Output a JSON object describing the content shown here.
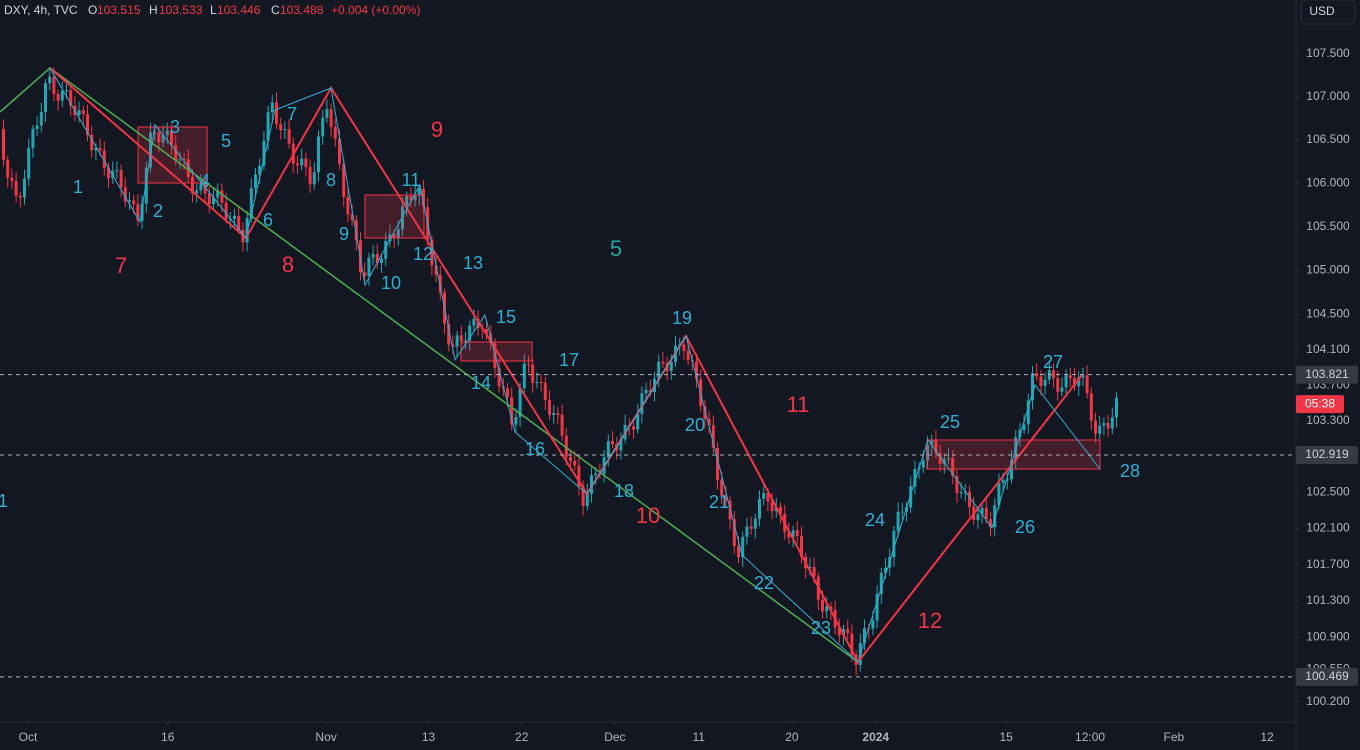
{
  "header": {
    "symbol": "DXY, 4h, TVC",
    "ohlc": [
      {
        "key": "O",
        "value": "103.515"
      },
      {
        "key": "H",
        "value": "103.533"
      },
      {
        "key": "L",
        "value": "103.446"
      },
      {
        "key": "C",
        "value": "103.488"
      }
    ],
    "change": "+0.004 (+0.00%)"
  },
  "currency_button": "USD",
  "chart_data": {
    "type": "candlestick",
    "log_scale": true,
    "ylim": [
      100.0,
      108.13
    ],
    "yticks": [
      {
        "value": 107.5,
        "label": "107.500"
      },
      {
        "value": 107.0,
        "label": "107.000"
      },
      {
        "value": 106.5,
        "label": "106.500"
      },
      {
        "value": 106.0,
        "label": "106.000"
      },
      {
        "value": 105.5,
        "label": "105.500"
      },
      {
        "value": 105.0,
        "label": "105.000"
      },
      {
        "value": 104.5,
        "label": "104.500"
      },
      {
        "value": 104.1,
        "label": "104.100"
      },
      {
        "value": 103.7,
        "label": "103.700"
      },
      {
        "value": 103.3,
        "label": "103.300"
      },
      {
        "value": 102.5,
        "label": "102.500"
      },
      {
        "value": 102.1,
        "label": "102.100"
      },
      {
        "value": 101.7,
        "label": "101.700"
      },
      {
        "value": 101.3,
        "label": "101.300"
      },
      {
        "value": 100.9,
        "label": "100.900"
      },
      {
        "value": 100.55,
        "label": "100.550"
      },
      {
        "value": 100.2,
        "label": "100.200"
      }
    ],
    "xlim": [
      -3,
      136
    ],
    "xticks": [
      {
        "value": 0,
        "label": "Oct"
      },
      {
        "value": 15,
        "label": "16"
      },
      {
        "value": 32,
        "label": "Nov"
      },
      {
        "value": 43,
        "label": "13"
      },
      {
        "value": 53,
        "label": "22"
      },
      {
        "value": 63,
        "label": "Dec"
      },
      {
        "value": 72,
        "label": "11"
      },
      {
        "value": 82,
        "label": "20"
      },
      {
        "value": 91,
        "label": "2024"
      },
      {
        "value": 105,
        "label": "15"
      },
      {
        "value": 114,
        "label": "12:00"
      },
      {
        "value": 123,
        "label": "Feb"
      },
      {
        "value": 133,
        "label": "12"
      }
    ],
    "price_lines": [
      {
        "value": 103.821,
        "label": "103.821"
      },
      {
        "value": 102.919,
        "label": "102.919"
      },
      {
        "value": 100.469,
        "label": "100.469"
      }
    ],
    "last_price": 103.488,
    "countdown": "05:38",
    "up_color": "#22a6b3",
    "down_color": "#f23645"
  },
  "annotations": {
    "minute_color": "#2bb0d4",
    "minor_color": "#f23645",
    "intermediate_color": "#26a69a",
    "minute": [
      "1",
      "1",
      "2",
      "3",
      "4",
      "5",
      "6",
      "7",
      "8",
      "9",
      "10",
      "11",
      "12",
      "13",
      "14",
      "15",
      "16",
      "17",
      "18",
      "19",
      "20",
      "21",
      "22",
      "23",
      "24",
      "25",
      "26",
      "27",
      "28"
    ],
    "minor": [
      "7",
      "8",
      "9",
      "10",
      "11",
      "12"
    ],
    "intermediate": [
      "5"
    ]
  }
}
